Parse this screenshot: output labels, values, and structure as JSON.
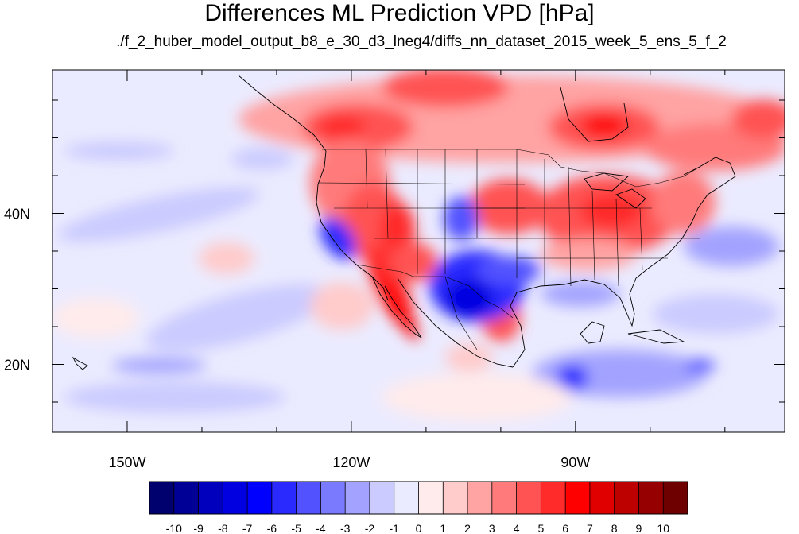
{
  "map": {
    "title": "Differences ML Prediction VPD [hPa]",
    "subtitle": "./f_2_huber_model_output_b8_e_30_d3_lneg4/diffs_nn_dataset_2015_week_5_ens_5_f_2",
    "lon_range": [
      -160,
      -62
    ],
    "lat_range": [
      11,
      59
    ],
    "lat_ticks": [
      {
        "value": 40,
        "label": "40N"
      },
      {
        "value": 20,
        "label": "20N"
      }
    ],
    "lon_ticks": [
      {
        "value": -150,
        "label": "150W"
      },
      {
        "value": -120,
        "label": "120W"
      },
      {
        "value": -90,
        "label": "90W"
      }
    ]
  },
  "colorbar": {
    "levels": [
      "-10",
      "-9",
      "-8",
      "-7",
      "-6",
      "-5",
      "-4",
      "-3",
      "-2",
      "-1",
      "0",
      "1",
      "2",
      "3",
      "4",
      "5",
      "6",
      "7",
      "8",
      "9",
      "10"
    ],
    "colors": [
      "#00006e",
      "#000096",
      "#0000bd",
      "#0000e0",
      "#0000ff",
      "#2a2aff",
      "#5252ff",
      "#7a7aff",
      "#a3a3ff",
      "#cbcbff",
      "#ebebff",
      "#ffebeb",
      "#ffcbcb",
      "#ffa3a3",
      "#ff7a7a",
      "#ff5252",
      "#ff2a2a",
      "#ff0000",
      "#e00000",
      "#bd0000",
      "#960000",
      "#6e0000"
    ]
  },
  "anomaly_regions": [
    {
      "name": "canada-west-positive",
      "lon": -115,
      "lat": 52,
      "level": 4
    },
    {
      "name": "canada-central-positive",
      "lon": -100,
      "lat": 55,
      "level": 5
    },
    {
      "name": "hudson-positive",
      "lon": -85,
      "lat": 51,
      "level": 6
    },
    {
      "name": "canada-east-positive",
      "lon": -72,
      "lat": 49,
      "level": 5
    },
    {
      "name": "great-basin-positive",
      "lon": -117,
      "lat": 38,
      "level": 6
    },
    {
      "name": "baja-positive",
      "lon": -112,
      "lat": 29,
      "level": 8
    },
    {
      "name": "midwest-positive",
      "lon": -88,
      "lat": 39,
      "level": 5
    },
    {
      "name": "plains-positive",
      "lon": -98,
      "lat": 41,
      "level": 5
    },
    {
      "name": "texas-coast-positive",
      "lon": -98,
      "lat": 27,
      "level": 5
    },
    {
      "name": "california-coast-negative",
      "lon": -121,
      "lat": 35,
      "level": -5
    },
    {
      "name": "colorado-negative",
      "lon": -106,
      "lat": 39,
      "level": -4
    },
    {
      "name": "mexico-north-negative",
      "lon": -103,
      "lat": 30,
      "level": -6
    },
    {
      "name": "pacific-band-negative",
      "lon": -142,
      "lat": 39,
      "level": -2
    },
    {
      "name": "pacific-south-negative",
      "lon": -135,
      "lat": 25,
      "level": -2
    },
    {
      "name": "gulf-negative",
      "lon": -90,
      "lat": 28,
      "level": -2
    },
    {
      "name": "caribbean-negative",
      "lon": -90,
      "lat": 18,
      "level": -4
    },
    {
      "name": "atlantic-negative",
      "lon": -70,
      "lat": 33,
      "level": -2
    }
  ]
}
